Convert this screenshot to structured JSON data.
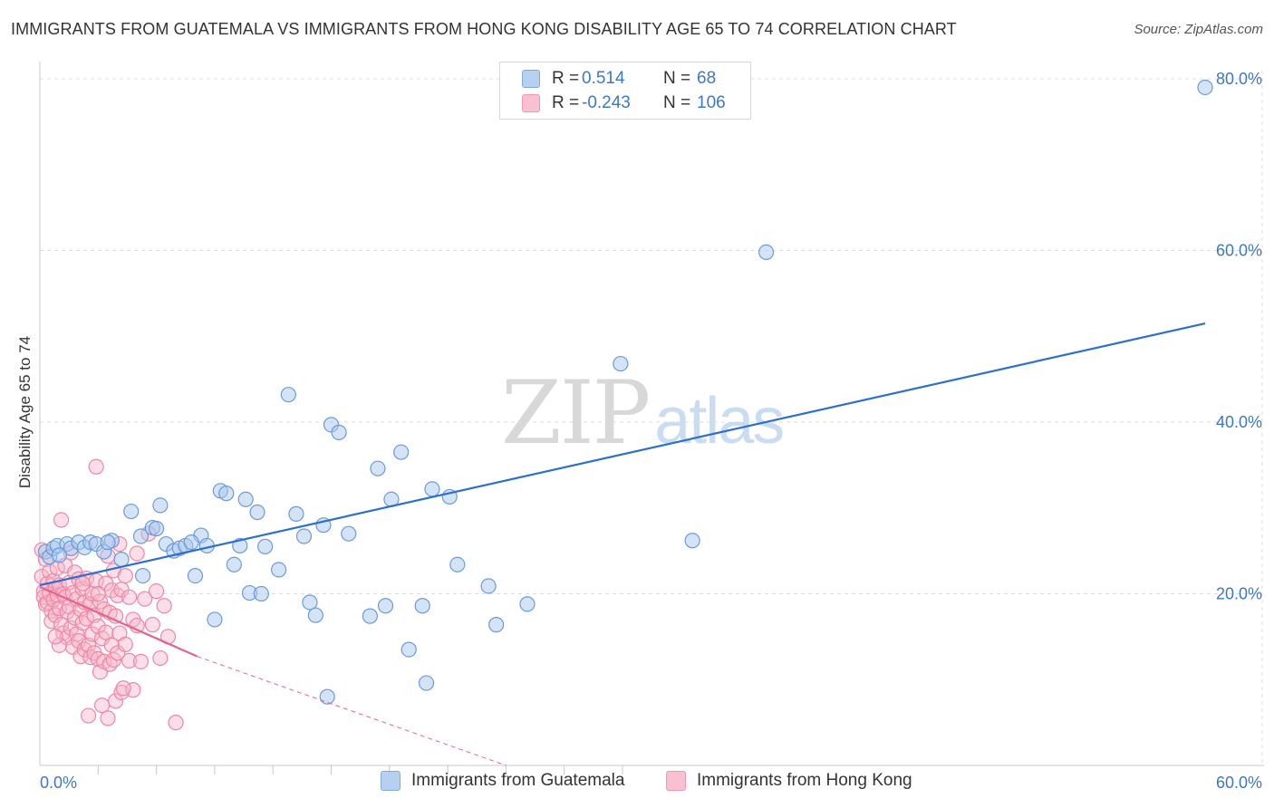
{
  "header": {
    "title": "IMMIGRANTS FROM GUATEMALA VS IMMIGRANTS FROM HONG KONG DISABILITY AGE 65 TO 74 CORRELATION CHART",
    "source": "Source: ZipAtlas.com"
  },
  "watermark": {
    "zip": "ZIP",
    "atlas": "atlas"
  },
  "legend_top": {
    "rows": [
      {
        "r_label": "R =",
        "r_value": "0.514",
        "n_label": "N =",
        "n_value": "68"
      },
      {
        "r_label": "R =",
        "r_value": "-0.243",
        "n_label": "N =",
        "n_value": "106"
      }
    ]
  },
  "colors": {
    "guatemala_fill": "#a9c8ee",
    "guatemala_stroke": "#6b9bd8",
    "guatemala_line": "#2e6fce",
    "hongkong_fill": "#f7b6c9",
    "hongkong_stroke": "#ee86a6",
    "hongkong_line": "#e8628d",
    "grid": "#dcdcdc",
    "axis_label": "#3c78c8"
  },
  "chart_data": {
    "type": "scatter",
    "title": "IMMIGRANTS FROM GUATEMALA VS IMMIGRANTS FROM HONG KONG DISABILITY AGE 65 TO 74 CORRELATION CHART",
    "xlabel": "",
    "ylabel": "Disability Age 65 to 74",
    "xlim": [
      0,
      60
    ],
    "ylim": [
      0,
      80
    ],
    "x_tick_labels": [
      "0.0%",
      "60.0%"
    ],
    "y_tick_labels": [
      "20.0%",
      "40.0%",
      "60.0%",
      "80.0%"
    ],
    "y_ticks": [
      20,
      40,
      60,
      80
    ],
    "legend_placement": "bottom-center",
    "series": [
      {
        "name": "Immigrants from Guatemala",
        "r": 0.514,
        "n": 68,
        "trend": {
          "x0": 0,
          "y0": 21.0,
          "x1": 60,
          "y1": 51.5
        },
        "points": [
          [
            0.3,
            24.9
          ],
          [
            0.5,
            24.3
          ],
          [
            0.7,
            25.3
          ],
          [
            0.9,
            25.6
          ],
          [
            1.4,
            25.8
          ],
          [
            1.6,
            25.3
          ],
          [
            2.0,
            26.0
          ],
          [
            2.3,
            25.4
          ],
          [
            2.6,
            26.0
          ],
          [
            2.9,
            25.8
          ],
          [
            3.3,
            24.9
          ],
          [
            3.7,
            26.2
          ],
          [
            4.2,
            24.0
          ],
          [
            4.7,
            29.6
          ],
          [
            5.2,
            26.7
          ],
          [
            5.3,
            22.1
          ],
          [
            5.8,
            27.7
          ],
          [
            6.0,
            27.6
          ],
          [
            6.2,
            30.3
          ],
          [
            6.5,
            25.8
          ],
          [
            6.9,
            25.0
          ],
          [
            7.2,
            25.3
          ],
          [
            7.5,
            25.6
          ],
          [
            8.0,
            22.1
          ],
          [
            8.3,
            26.8
          ],
          [
            8.6,
            25.6
          ],
          [
            9.0,
            17.0
          ],
          [
            9.3,
            32.0
          ],
          [
            9.6,
            31.7
          ],
          [
            10.0,
            23.4
          ],
          [
            10.3,
            25.6
          ],
          [
            10.6,
            31.0
          ],
          [
            10.8,
            20.1
          ],
          [
            11.2,
            29.5
          ],
          [
            11.4,
            20.0
          ],
          [
            11.6,
            25.5
          ],
          [
            12.3,
            22.8
          ],
          [
            12.8,
            43.2
          ],
          [
            13.2,
            29.3
          ],
          [
            13.6,
            26.7
          ],
          [
            13.9,
            19.0
          ],
          [
            14.2,
            17.5
          ],
          [
            14.6,
            28.0
          ],
          [
            15.0,
            39.7
          ],
          [
            15.4,
            38.8
          ],
          [
            15.9,
            27.0
          ],
          [
            17.0,
            17.4
          ],
          [
            17.4,
            34.6
          ],
          [
            17.8,
            18.6
          ],
          [
            18.1,
            31.0
          ],
          [
            18.6,
            36.5
          ],
          [
            19.0,
            13.5
          ],
          [
            19.7,
            18.6
          ],
          [
            19.9,
            9.6
          ],
          [
            20.2,
            32.2
          ],
          [
            21.1,
            31.3
          ],
          [
            21.5,
            23.4
          ],
          [
            23.1,
            20.9
          ],
          [
            23.5,
            16.4
          ],
          [
            25.1,
            18.8
          ],
          [
            29.9,
            46.8
          ],
          [
            33.6,
            26.2
          ],
          [
            37.4,
            59.8
          ],
          [
            60.0,
            79.0
          ],
          [
            14.8,
            8.0
          ],
          [
            3.5,
            26.0
          ],
          [
            1.0,
            24.5
          ],
          [
            7.8,
            26.0
          ]
        ]
      },
      {
        "name": "Immigrants from Hong Kong",
        "r": -0.243,
        "n": 106,
        "trend": {
          "x0": 0,
          "y0": 20.8,
          "x1": 8.1,
          "y1": 12.7,
          "dash_x1": 24.0,
          "dash_y1": 0.0
        },
        "points": [
          [
            0.1,
            25.1
          ],
          [
            0.1,
            22.0
          ],
          [
            0.2,
            20.3
          ],
          [
            0.2,
            19.6
          ],
          [
            0.3,
            18.8
          ],
          [
            0.3,
            24.0
          ],
          [
            0.4,
            21.2
          ],
          [
            0.4,
            19.0
          ],
          [
            0.5,
            22.6
          ],
          [
            0.5,
            20.0
          ],
          [
            0.6,
            18.0
          ],
          [
            0.6,
            16.8
          ],
          [
            0.7,
            21.5
          ],
          [
            0.7,
            19.3
          ],
          [
            0.8,
            20.6
          ],
          [
            0.8,
            17.5
          ],
          [
            0.9,
            23.0
          ],
          [
            0.9,
            19.8
          ],
          [
            1.0,
            21.0
          ],
          [
            1.0,
            18.3
          ],
          [
            1.1,
            28.6
          ],
          [
            1.1,
            16.4
          ],
          [
            1.2,
            20.0
          ],
          [
            1.2,
            15.4
          ],
          [
            1.3,
            23.3
          ],
          [
            1.3,
            19.6
          ],
          [
            1.4,
            17.9
          ],
          [
            1.4,
            14.9
          ],
          [
            1.5,
            21.3
          ],
          [
            1.5,
            18.5
          ],
          [
            1.6,
            24.8
          ],
          [
            1.6,
            16.0
          ],
          [
            1.7,
            20.1
          ],
          [
            1.7,
            13.8
          ],
          [
            1.8,
            22.5
          ],
          [
            1.8,
            17.2
          ],
          [
            1.9,
            19.4
          ],
          [
            1.9,
            15.3
          ],
          [
            2.0,
            21.7
          ],
          [
            2.0,
            14.5
          ],
          [
            2.1,
            18.2
          ],
          [
            2.1,
            12.7
          ],
          [
            2.2,
            20.6
          ],
          [
            2.2,
            16.6
          ],
          [
            2.3,
            13.5
          ],
          [
            2.3,
            19.0
          ],
          [
            2.4,
            21.8
          ],
          [
            2.4,
            17.1
          ],
          [
            2.5,
            14.0
          ],
          [
            2.5,
            5.8
          ],
          [
            2.6,
            18.8
          ],
          [
            2.6,
            12.6
          ],
          [
            2.7,
            20.0
          ],
          [
            2.7,
            15.3
          ],
          [
            2.8,
            17.5
          ],
          [
            2.8,
            13.1
          ],
          [
            2.9,
            34.8
          ],
          [
            2.9,
            21.5
          ],
          [
            3.0,
            16.2
          ],
          [
            3.0,
            12.4
          ],
          [
            3.1,
            19.1
          ],
          [
            3.1,
            10.9
          ],
          [
            3.2,
            14.8
          ],
          [
            3.2,
            7.0
          ],
          [
            3.3,
            18.2
          ],
          [
            3.3,
            12.1
          ],
          [
            3.4,
            21.2
          ],
          [
            3.4,
            15.5
          ],
          [
            3.5,
            24.4
          ],
          [
            3.5,
            5.5
          ],
          [
            3.6,
            17.8
          ],
          [
            3.6,
            11.8
          ],
          [
            3.7,
            20.4
          ],
          [
            3.7,
            14.0
          ],
          [
            3.8,
            22.7
          ],
          [
            3.8,
            12.3
          ],
          [
            3.9,
            17.4
          ],
          [
            3.9,
            7.5
          ],
          [
            4.0,
            19.8
          ],
          [
            4.0,
            13.1
          ],
          [
            4.1,
            25.8
          ],
          [
            4.1,
            15.4
          ],
          [
            4.2,
            20.5
          ],
          [
            4.2,
            8.5
          ],
          [
            4.4,
            22.1
          ],
          [
            4.4,
            14.1
          ],
          [
            4.6,
            19.6
          ],
          [
            4.6,
            12.2
          ],
          [
            4.8,
            17.0
          ],
          [
            4.8,
            8.8
          ],
          [
            5.0,
            24.7
          ],
          [
            5.0,
            16.3
          ],
          [
            5.2,
            12.1
          ],
          [
            5.4,
            19.4
          ],
          [
            5.6,
            27.0
          ],
          [
            5.8,
            16.4
          ],
          [
            6.0,
            20.3
          ],
          [
            6.2,
            12.5
          ],
          [
            6.4,
            18.6
          ],
          [
            6.6,
            15.0
          ],
          [
            7.0,
            5.0
          ],
          [
            2.2,
            21.2
          ],
          [
            1.0,
            14.0
          ],
          [
            0.8,
            15.0
          ],
          [
            4.3,
            9.0
          ],
          [
            3.0,
            20.0
          ]
        ]
      }
    ]
  },
  "legend_bottom": {
    "items": [
      {
        "label": "Immigrants from Guatemala"
      },
      {
        "label": "Immigrants from Hong Kong"
      }
    ]
  }
}
